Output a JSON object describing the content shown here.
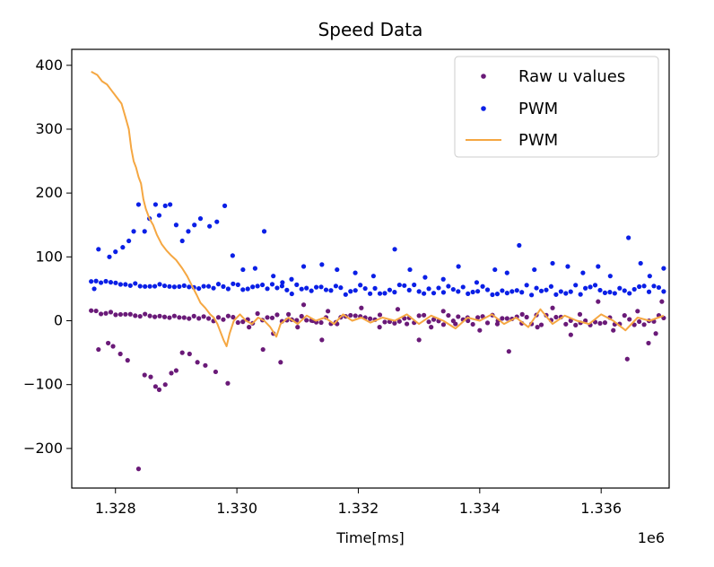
{
  "chart_data": {
    "type": "scatter",
    "title": "Speed Data",
    "xlabel": "Time[ms]",
    "ylabel": "",
    "x_offset_label": "1e6",
    "xlim": [
      1.32728,
      1.33712
    ],
    "ylim": [
      -262,
      425
    ],
    "x_ticks": [
      1.328,
      1.33,
      1.332,
      1.334,
      1.336
    ],
    "x_tick_labels": [
      "1.328",
      "1.330",
      "1.332",
      "1.334",
      "1.336"
    ],
    "y_ticks": [
      -200,
      -100,
      0,
      100,
      200,
      300,
      400
    ],
    "y_tick_labels": [
      "−200",
      "−100",
      "0",
      "100",
      "200",
      "300",
      "400"
    ],
    "grid": false,
    "legend_position": "top-right",
    "series": [
      {
        "name": "Raw u values",
        "kind": "scatter",
        "color": "#6a1a78",
        "x_start": 1.3276,
        "x_end": 1.33703,
        "count": 118,
        "baseline_start": 14,
        "baseline_end": 1,
        "jitter": 8,
        "outliers": [
          [
            1.32772,
            -45
          ],
          [
            1.32788,
            -35
          ],
          [
            1.32796,
            -40
          ],
          [
            1.32808,
            -52
          ],
          [
            1.3282,
            -62
          ],
          [
            1.32838,
            -232
          ],
          [
            1.32848,
            -85
          ],
          [
            1.32858,
            -88
          ],
          [
            1.32866,
            -103
          ],
          [
            1.32872,
            -108
          ],
          [
            1.32882,
            -100
          ],
          [
            1.32892,
            -82
          ],
          [
            1.329,
            -78
          ],
          [
            1.3291,
            -50
          ],
          [
            1.32922,
            -52
          ],
          [
            1.32935,
            -65
          ],
          [
            1.32948,
            -70
          ],
          [
            1.32965,
            -80
          ],
          [
            1.32985,
            -98
          ],
          [
            1.3302,
            -10
          ],
          [
            1.33043,
            -45
          ],
          [
            1.3306,
            -20
          ],
          [
            1.33072,
            -65
          ],
          [
            1.33085,
            10
          ],
          [
            1.331,
            -10
          ],
          [
            1.3311,
            25
          ],
          [
            1.33125,
            0
          ],
          [
            1.3314,
            -30
          ],
          [
            1.3315,
            15
          ],
          [
            1.33165,
            -5
          ],
          [
            1.33205,
            20
          ],
          [
            1.33235,
            -10
          ],
          [
            1.33265,
            18
          ],
          [
            1.3328,
            -5
          ],
          [
            1.333,
            -30
          ],
          [
            1.3332,
            -10
          ],
          [
            1.3334,
            15
          ],
          [
            1.3336,
            -5
          ],
          [
            1.3338,
            5
          ],
          [
            1.334,
            -15
          ],
          [
            1.3343,
            0
          ],
          [
            1.33448,
            -48
          ],
          [
            1.3347,
            10
          ],
          [
            1.33495,
            -10
          ],
          [
            1.3352,
            20
          ],
          [
            1.3355,
            -22
          ],
          [
            1.33565,
            10
          ],
          [
            1.33595,
            30
          ],
          [
            1.3362,
            -15
          ],
          [
            1.33643,
            -60
          ],
          [
            1.3366,
            15
          ],
          [
            1.33678,
            -35
          ],
          [
            1.3369,
            -20
          ],
          [
            1.337,
            30
          ]
        ]
      },
      {
        "name": "PWM",
        "kind": "scatter",
        "color": "#0a1fe6",
        "x_start": 1.3276,
        "x_end": 1.33703,
        "count": 118,
        "baseline_start": 62,
        "baseline_end": 48,
        "jitter": 8,
        "outliers": [
          [
            1.32765,
            50
          ],
          [
            1.32772,
            112
          ],
          [
            1.3279,
            100
          ],
          [
            1.328,
            108
          ],
          [
            1.32812,
            115
          ],
          [
            1.32822,
            125
          ],
          [
            1.3283,
            140
          ],
          [
            1.32838,
            182
          ],
          [
            1.32848,
            140
          ],
          [
            1.32856,
            160
          ],
          [
            1.32866,
            182
          ],
          [
            1.32872,
            165
          ],
          [
            1.32882,
            180
          ],
          [
            1.3289,
            182
          ],
          [
            1.329,
            150
          ],
          [
            1.3291,
            125
          ],
          [
            1.3292,
            140
          ],
          [
            1.3293,
            150
          ],
          [
            1.3294,
            160
          ],
          [
            1.32955,
            148
          ],
          [
            1.32967,
            155
          ],
          [
            1.3298,
            180
          ],
          [
            1.32993,
            102
          ],
          [
            1.3301,
            80
          ],
          [
            1.3303,
            82
          ],
          [
            1.33045,
            140
          ],
          [
            1.3306,
            70
          ],
          [
            1.33075,
            60
          ],
          [
            1.3309,
            65
          ],
          [
            1.3311,
            85
          ],
          [
            1.3314,
            88
          ],
          [
            1.33165,
            80
          ],
          [
            1.33195,
            75
          ],
          [
            1.33225,
            70
          ],
          [
            1.3326,
            112
          ],
          [
            1.33285,
            80
          ],
          [
            1.3331,
            68
          ],
          [
            1.3334,
            65
          ],
          [
            1.33365,
            85
          ],
          [
            1.33395,
            60
          ],
          [
            1.33425,
            80
          ],
          [
            1.33445,
            75
          ],
          [
            1.33465,
            118
          ],
          [
            1.3349,
            80
          ],
          [
            1.3352,
            90
          ],
          [
            1.33545,
            85
          ],
          [
            1.3357,
            75
          ],
          [
            1.33595,
            85
          ],
          [
            1.33615,
            70
          ],
          [
            1.33645,
            130
          ],
          [
            1.33665,
            90
          ],
          [
            1.3368,
            70
          ],
          [
            1.33703,
            82
          ]
        ]
      },
      {
        "name": "PWM",
        "kind": "line",
        "color": "#f5a742",
        "points": [
          [
            1.3276,
            390
          ],
          [
            1.3277,
            385
          ],
          [
            1.32778,
            375
          ],
          [
            1.32786,
            370
          ],
          [
            1.32794,
            360
          ],
          [
            1.32802,
            350
          ],
          [
            1.3281,
            340
          ],
          [
            1.32816,
            320
          ],
          [
            1.32822,
            300
          ],
          [
            1.32826,
            270
          ],
          [
            1.3283,
            250
          ],
          [
            1.32834,
            240
          ],
          [
            1.32838,
            225
          ],
          [
            1.32842,
            215
          ],
          [
            1.32846,
            190
          ],
          [
            1.3285,
            175
          ],
          [
            1.32856,
            160
          ],
          [
            1.32862,
            150
          ],
          [
            1.32868,
            135
          ],
          [
            1.32876,
            120
          ],
          [
            1.32884,
            110
          ],
          [
            1.32892,
            102
          ],
          [
            1.329,
            95
          ],
          [
            1.3291,
            82
          ],
          [
            1.32918,
            70
          ],
          [
            1.32926,
            55
          ],
          [
            1.32934,
            40
          ],
          [
            1.3294,
            28
          ],
          [
            1.32948,
            20
          ],
          [
            1.32956,
            10
          ],
          [
            1.32962,
            5
          ],
          [
            1.32968,
            -5
          ],
          [
            1.32972,
            -15
          ],
          [
            1.32978,
            -30
          ],
          [
            1.32983,
            -40
          ],
          [
            1.32988,
            -20
          ],
          [
            1.32995,
            0
          ],
          [
            1.33005,
            10
          ],
          [
            1.33015,
            0
          ],
          [
            1.33025,
            -5
          ],
          [
            1.33035,
            5
          ],
          [
            1.33045,
            0
          ],
          [
            1.33055,
            -10
          ],
          [
            1.33065,
            -25
          ],
          [
            1.33072,
            -5
          ],
          [
            1.33085,
            5
          ],
          [
            1.331,
            -5
          ],
          [
            1.33115,
            8
          ],
          [
            1.3313,
            0
          ],
          [
            1.33145,
            5
          ],
          [
            1.3316,
            -5
          ],
          [
            1.33175,
            10
          ],
          [
            1.3319,
            0
          ],
          [
            1.33205,
            5
          ],
          [
            1.3322,
            -3
          ],
          [
            1.3324,
            5
          ],
          [
            1.3326,
            0
          ],
          [
            1.3328,
            10
          ],
          [
            1.333,
            -5
          ],
          [
            1.3332,
            8
          ],
          [
            1.3334,
            0
          ],
          [
            1.3336,
            -12
          ],
          [
            1.3338,
            5
          ],
          [
            1.334,
            0
          ],
          [
            1.3342,
            10
          ],
          [
            1.3344,
            -5
          ],
          [
            1.3346,
            5
          ],
          [
            1.3348,
            -10
          ],
          [
            1.335,
            18
          ],
          [
            1.3352,
            -5
          ],
          [
            1.3354,
            8
          ],
          [
            1.3356,
            0
          ],
          [
            1.3358,
            -5
          ],
          [
            1.336,
            10
          ],
          [
            1.3362,
            0
          ],
          [
            1.3364,
            -15
          ],
          [
            1.3366,
            5
          ],
          [
            1.3368,
            0
          ],
          [
            1.33703,
            8
          ]
        ]
      }
    ]
  }
}
